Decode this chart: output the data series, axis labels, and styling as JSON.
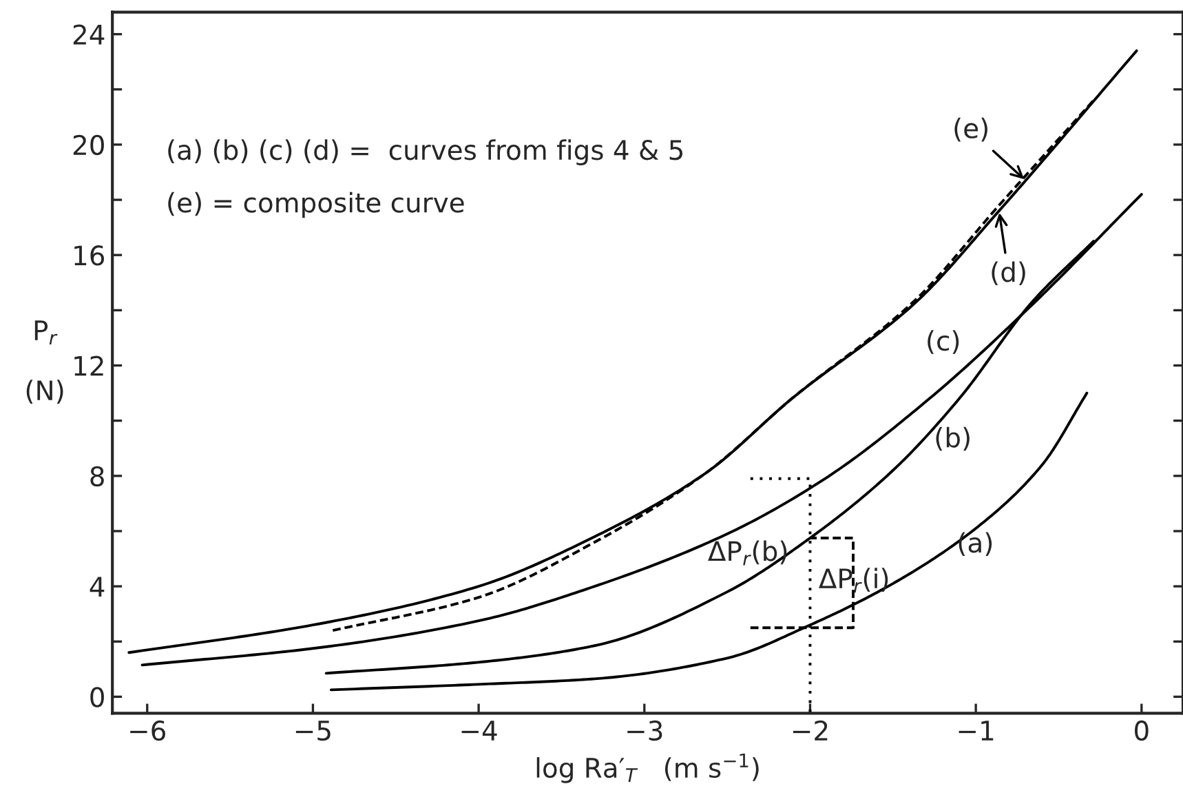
{
  "chart_data": {
    "type": "line",
    "xlabel": "log Ra′$_{T}$   (m s$^{−1}$)",
    "ylabel": "P$_{r}$\n\n(N)",
    "xlim": [
      -6.21,
      0.25
    ],
    "ylim": [
      -0.6,
      24.8
    ],
    "xticks": [
      -6,
      -5,
      -4,
      -3,
      -2,
      -1,
      0
    ],
    "yticks": [
      0,
      {
        "value": 2,
        "label": null
      },
      4,
      {
        "value": 6,
        "label": null
      },
      8,
      {
        "value": 10,
        "label": null
      },
      12,
      {
        "value": 14,
        "label": null
      },
      16,
      {
        "value": 18,
        "label": null
      },
      20,
      {
        "value": 22,
        "label": null
      },
      24
    ],
    "grid": false,
    "legend": false,
    "marker": "none",
    "series": [
      {
        "color": "#000000",
        "line_style": "solid",
        "x": [
          -4.89,
          -4,
          -3.3,
          -2.5,
          -2,
          -1.5,
          -1,
          -0.6,
          -0.33
        ],
        "values": [
          0.25,
          0.45,
          0.65,
          1.4,
          2.6,
          4.1,
          6.1,
          8.4,
          11.0
        ]
      },
      {
        "color": "#000000",
        "line_style": "solid",
        "x": [
          -4.92,
          -4,
          -3.3,
          -2.5,
          -2,
          -1.5,
          -1.1,
          -0.66,
          -0.29
        ],
        "values": [
          0.85,
          1.25,
          1.85,
          3.8,
          5.75,
          8.2,
          10.8,
          14.3,
          16.5
        ]
      },
      {
        "color": "#000000",
        "line_style": "solid",
        "x": [
          -6.03,
          -5,
          -4,
          -3.3,
          -2.5,
          -1.91,
          -1.28,
          -0.66,
          0
        ],
        "values": [
          1.15,
          1.75,
          2.75,
          4.0,
          5.9,
          7.9,
          10.8,
          14.2,
          18.2
        ]
      },
      {
        "color": "#000000",
        "line_style": "solid",
        "x": [
          -6.11,
          -5,
          -4,
          -3.3,
          -2.63,
          -2.11,
          -1.36,
          -0.86,
          -0.03
        ],
        "values": [
          1.6,
          2.6,
          4.0,
          5.8,
          8.1,
          10.8,
          14.3,
          17.6,
          23.4
        ]
      },
      {
        "color": "#000000",
        "line_style": "dashed",
        "x": [
          -4.88,
          -4,
          -3.3,
          -2.63,
          -2.11,
          -1.36,
          -0.86,
          -0.29
        ],
        "values": [
          2.4,
          3.6,
          5.6,
          8.1,
          10.8,
          14.4,
          17.8,
          21.6
        ]
      },
      {
        "color": "#000000",
        "line_style": "dotted",
        "x": [
          -2.36,
          -2,
          -2
        ],
        "values": [
          7.9,
          7.9,
          -0.6
        ]
      },
      {
        "color": "#000000",
        "line_style": "dashed",
        "x": [
          -2.36,
          -1.74,
          -1.74,
          -2
        ],
        "values": [
          2.5,
          2.5,
          5.75,
          5.75
        ]
      }
    ],
    "annotations": [
      "(a) (b) (c) (d) =  curves from figs 4 & 5",
      "(e) = composite curve",
      "(a)",
      "(b)",
      "(c)",
      {
        "text": "(d)",
        "x": -0.86,
        "y": 17.6
      },
      {
        "text": "(e)",
        "x": -0.7,
        "y": 18.7
      },
      "ΔP$_{r}$(b)",
      "ΔP$_{r}$(i)"
    ]
  }
}
